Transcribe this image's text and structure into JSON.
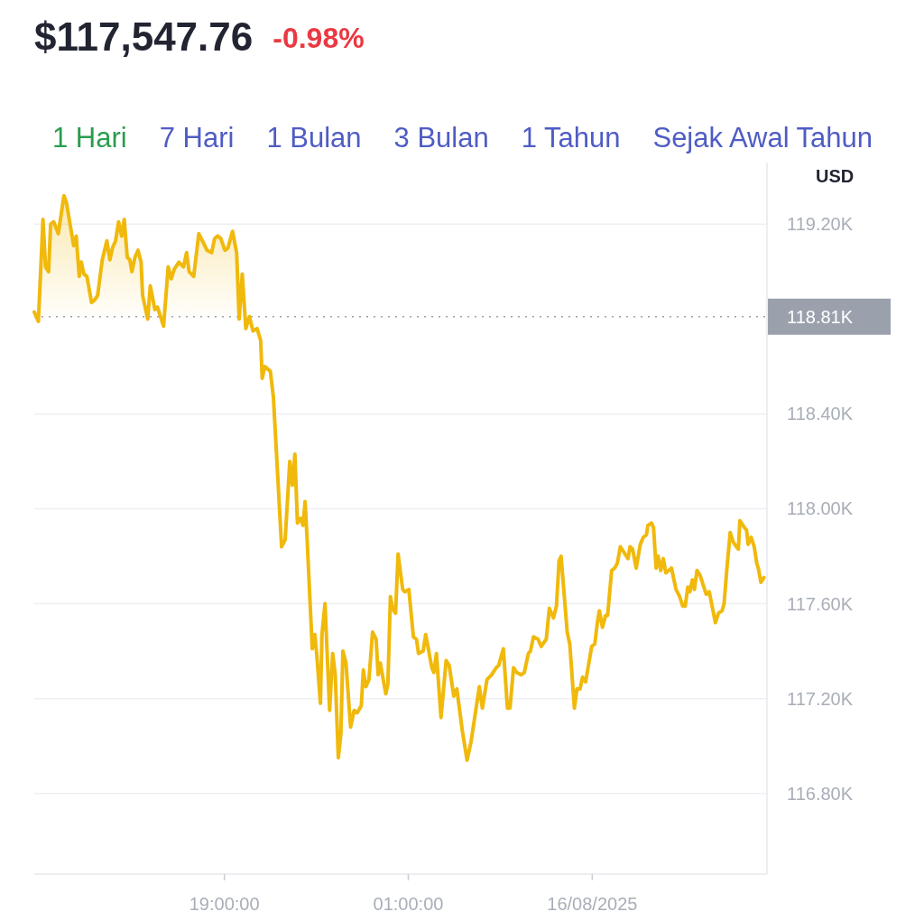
{
  "chart_data": {
    "type": "area",
    "title": "$117,547.76",
    "subtitle": "-0.98%",
    "ylabel": "USD",
    "annotations": [
      "1 Hari",
      "7 Hari",
      "1 Bulan",
      "3 Bulan",
      "1 Tahun",
      "Sejak Awal Tahun"
    ],
    "x": [
      "2025-08-15T12:48",
      "2025-08-15T12:56",
      "2025-08-15T13:05",
      "2025-08-15T13:10",
      "2025-08-15T13:16",
      "2025-08-15T13:20",
      "2025-08-15T13:26",
      "2025-08-15T13:35",
      "2025-08-15T13:46",
      "2025-08-15T13:51",
      "2025-08-15T14:05",
      "2025-08-15T14:10",
      "2025-08-15T14:16",
      "2025-08-15T14:20",
      "2025-08-15T14:25",
      "2025-08-15T14:31",
      "2025-08-15T14:40",
      "2025-08-15T14:46",
      "2025-08-15T14:52",
      "2025-08-15T15:01",
      "2025-08-15T15:10",
      "2025-08-15T15:16",
      "2025-08-15T15:21",
      "2025-08-15T15:27",
      "2025-08-15T15:33",
      "2025-08-15T15:39",
      "2025-08-15T15:44",
      "2025-08-15T15:50",
      "2025-08-15T15:55",
      "2025-08-15T15:59",
      "2025-08-15T16:05",
      "2025-08-15T16:11",
      "2025-08-15T16:17",
      "2025-08-15T16:20",
      "2025-08-15T16:30",
      "2025-08-15T16:35",
      "2025-08-15T16:44",
      "2025-08-15T16:49",
      "2025-08-15T17:01",
      "2025-08-15T17:10",
      "2025-08-15T17:16",
      "2025-08-15T17:22",
      "2025-08-15T17:31",
      "2025-08-15T17:40",
      "2025-08-15T17:46",
      "2025-08-15T17:51",
      "2025-08-15T18:00",
      "2025-08-15T18:10",
      "2025-08-15T18:17",
      "2025-08-15T18:26",
      "2025-08-15T18:35",
      "2025-08-15T18:41",
      "2025-08-15T18:47",
      "2025-08-15T18:53",
      "2025-08-15T19:01",
      "2025-08-15T19:07",
      "2025-08-15T19:16",
      "2025-08-15T19:24",
      "2025-08-15T19:29",
      "2025-08-15T19:35",
      "2025-08-15T19:42",
      "2025-08-15T19:49",
      "2025-08-15T19:56",
      "2025-08-15T20:04",
      "2025-08-15T20:11",
      "2025-08-15T20:14",
      "2025-08-15T20:19",
      "2025-08-15T20:30",
      "2025-08-15T20:36",
      "2025-08-15T20:52",
      "2025-08-15T20:59",
      "2025-08-15T21:08",
      "2025-08-15T21:13",
      "2025-08-15T21:18",
      "2025-08-15T21:23",
      "2025-08-15T21:29",
      "2025-08-15T21:34",
      "2025-08-15T21:38",
      "2025-08-15T21:42",
      "2025-08-15T21:52",
      "2025-08-15T21:57",
      "2025-08-15T22:01",
      "2025-08-15T22:08",
      "2025-08-15T22:11",
      "2025-08-15T22:17",
      "2025-08-15T22:26",
      "2025-08-15T22:32",
      "2025-08-15T22:37",
      "2025-08-15T22:43",
      "2025-08-15T22:48",
      "2025-08-15T22:52",
      "2025-08-15T22:58",
      "2025-08-15T23:07",
      "2025-08-15T23:14",
      "2025-08-15T23:20",
      "2025-08-15T23:28",
      "2025-08-15T23:32",
      "2025-08-15T23:37",
      "2025-08-15T23:43",
      "2025-08-15T23:50",
      "2025-08-15T23:57",
      "2025-08-16T00:01",
      "2025-08-16T00:05",
      "2025-08-16T00:16",
      "2025-08-16T00:20",
      "2025-08-16T00:25",
      "2025-08-16T00:29",
      "2025-08-16T00:35",
      "2025-08-16T00:40",
      "2025-08-16T00:49",
      "2025-08-16T00:53",
      "2025-08-16T01:01",
      "2025-08-16T01:10",
      "2025-08-16T01:16",
      "2025-08-16T01:20",
      "2025-08-16T01:29",
      "2025-08-16T01:34",
      "2025-08-16T01:46",
      "2025-08-16T01:50",
      "2025-08-16T01:55",
      "2025-08-16T02:04",
      "2025-08-16T02:14",
      "2025-08-16T02:20",
      "2025-08-16T02:29",
      "2025-08-16T02:35",
      "2025-08-16T02:46",
      "2025-08-16T02:55",
      "2025-08-16T03:03",
      "2025-08-16T03:19",
      "2025-08-16T03:25",
      "2025-08-16T03:34",
      "2025-08-16T03:43",
      "2025-08-16T03:52",
      "2025-08-16T03:57",
      "2025-08-16T04:06",
      "2025-08-16T04:14",
      "2025-08-16T04:19",
      "2025-08-16T04:26",
      "2025-08-16T04:32",
      "2025-08-16T04:41",
      "2025-08-16T04:47",
      "2025-08-16T04:55",
      "2025-08-16T04:59",
      "2025-08-16T05:05",
      "2025-08-16T05:14",
      "2025-08-16T05:20",
      "2025-08-16T05:30",
      "2025-08-16T05:36",
      "2025-08-16T05:44",
      "2025-08-16T05:50",
      "2025-08-16T05:55",
      "2025-08-16T05:59",
      "2025-08-16T06:11",
      "2025-08-16T06:16",
      "2025-08-16T06:25",
      "2025-08-16T06:30",
      "2025-08-16T06:36",
      "2025-08-16T06:41",
      "2025-08-16T06:47",
      "2025-08-16T06:59",
      "2025-08-16T07:05",
      "2025-08-16T07:10",
      "2025-08-16T07:14",
      "2025-08-16T07:20",
      "2025-08-16T07:26",
      "2025-08-16T07:30",
      "2025-08-16T07:38",
      "2025-08-16T07:44",
      "2025-08-16T07:49",
      "2025-08-16T07:55",
      "2025-08-16T08:01",
      "2025-08-16T08:10",
      "2025-08-16T08:14",
      "2025-08-16T08:19",
      "2025-08-16T08:26",
      "2025-08-16T08:34",
      "2025-08-16T08:40",
      "2025-08-16T08:46",
      "2025-08-16T08:49",
      "2025-08-16T08:56",
      "2025-08-16T09:00",
      "2025-08-16T09:05",
      "2025-08-16T09:09",
      "2025-08-16T09:14",
      "2025-08-16T09:19",
      "2025-08-16T09:24",
      "2025-08-16T09:35",
      "2025-08-16T09:44",
      "2025-08-16T09:51",
      "2025-08-16T09:57",
      "2025-08-16T10:02",
      "2025-08-16T10:07",
      "2025-08-16T10:11",
      "2025-08-16T10:16",
      "2025-08-16T10:20",
      "2025-08-16T10:25",
      "2025-08-16T10:31",
      "2025-08-16T10:43",
      "2025-08-16T10:49",
      "2025-08-16T11:01",
      "2025-08-16T11:07",
      "2025-08-16T11:14",
      "2025-08-16T11:18",
      "2025-08-16T11:24",
      "2025-08-16T11:30",
      "2025-08-16T11:36",
      "2025-08-16T11:42",
      "2025-08-16T11:46",
      "2025-08-16T11:49",
      "2025-08-16T11:58",
      "2025-08-16T12:02",
      "2025-08-16T12:05",
      "2025-08-16T12:11",
      "2025-08-16T12:17",
      "2025-08-16T12:22",
      "2025-08-16T12:25",
      "2025-08-16T12:30",
      "2025-08-16T12:36"
    ],
    "series": [
      {
        "color": "#f0b90b",
        "values": [
          118830,
          118790,
          119220,
          119020,
          119000,
          119200,
          119210,
          119160,
          119320,
          119290,
          119110,
          119150,
          118980,
          119040,
          118990,
          118980,
          118870,
          118880,
          118900,
          119050,
          119130,
          119050,
          119100,
          119130,
          119210,
          119150,
          119220,
          119060,
          119050,
          119000,
          119060,
          119090,
          119040,
          118900,
          118800,
          118940,
          118840,
          118850,
          118770,
          119020,
          118970,
          119010,
          119040,
          119020,
          119080,
          119000,
          118980,
          119160,
          119130,
          119090,
          119080,
          119140,
          119150,
          119140,
          119090,
          119100,
          119170,
          119080,
          118800,
          118990,
          118760,
          118810,
          118750,
          118760,
          118710,
          118550,
          118600,
          118580,
          118470,
          117840,
          117870,
          118200,
          118100,
          118230,
          117940,
          117960,
          117930,
          118030,
          117870,
          117410,
          117470,
          117380,
          117180,
          117470,
          117600,
          117150,
          117390,
          117300,
          116950,
          117050,
          117400,
          117350,
          117080,
          117150,
          117140,
          117170,
          117320,
          117250,
          117280,
          117480,
          117450,
          117300,
          117350,
          117220,
          117260,
          117630,
          117580,
          117560,
          117810,
          117660,
          117650,
          117660,
          117460,
          117450,
          117390,
          117400,
          117470,
          117330,
          117310,
          117390,
          117120,
          117360,
          117340,
          117210,
          117240,
          117060,
          116940,
          117020,
          117250,
          117160,
          117280,
          117300,
          117330,
          117340,
          117410,
          117160,
          117160,
          117330,
          117310,
          117300,
          117310,
          117390,
          117400,
          117460,
          117450,
          117420,
          117450,
          117580,
          117540,
          117590,
          117780,
          117800,
          117480,
          117430,
          117160,
          117240,
          117240,
          117290,
          117270,
          117420,
          117430,
          117520,
          117570,
          117500,
          117550,
          117550,
          117740,
          117750,
          117770,
          117840,
          117820,
          117790,
          117840,
          117830,
          117750,
          117850,
          117880,
          117890,
          117930,
          117940,
          117920,
          117750,
          117800,
          117740,
          117790,
          117730,
          117750,
          117660,
          117630,
          117590,
          117590,
          117670,
          117650,
          117700,
          117660,
          117740,
          117720,
          117640,
          117650,
          117520,
          117560,
          117570,
          117600,
          117760,
          117900,
          117860,
          117840,
          117830,
          117950,
          117920,
          117910,
          117850,
          117880,
          117840,
          117770,
          117750,
          117690,
          117710
        ]
      }
    ],
    "xlim": [
      "2025-08-15T12:48",
      "2025-08-16T12:42"
    ],
    "xticks": [
      {
        "value": "2025-08-15T19:00",
        "label": "19:00:00"
      },
      {
        "value": "2025-08-16T01:00",
        "label": "01:00:00"
      },
      {
        "value": "2025-08-16T07:00",
        "label": "16/08/2025"
      }
    ],
    "ylim": [
      116460,
      119460
    ],
    "yticks": [
      {
        "value": 116800,
        "label": "116.80K"
      },
      {
        "value": 117200,
        "label": "117.20K"
      },
      {
        "value": 117600,
        "label": "117.60K"
      },
      {
        "value": 118000,
        "label": "118.00K"
      },
      {
        "value": 118400,
        "label": "118.40K"
      },
      {
        "value": 119200,
        "label": "119.20K"
      }
    ],
    "ref_lines": [
      {
        "axis": "y",
        "value": 118810,
        "label": "118.81K",
        "color": "#9aa1ac",
        "line_style": "dotted"
      }
    ],
    "grid": "y"
  }
}
